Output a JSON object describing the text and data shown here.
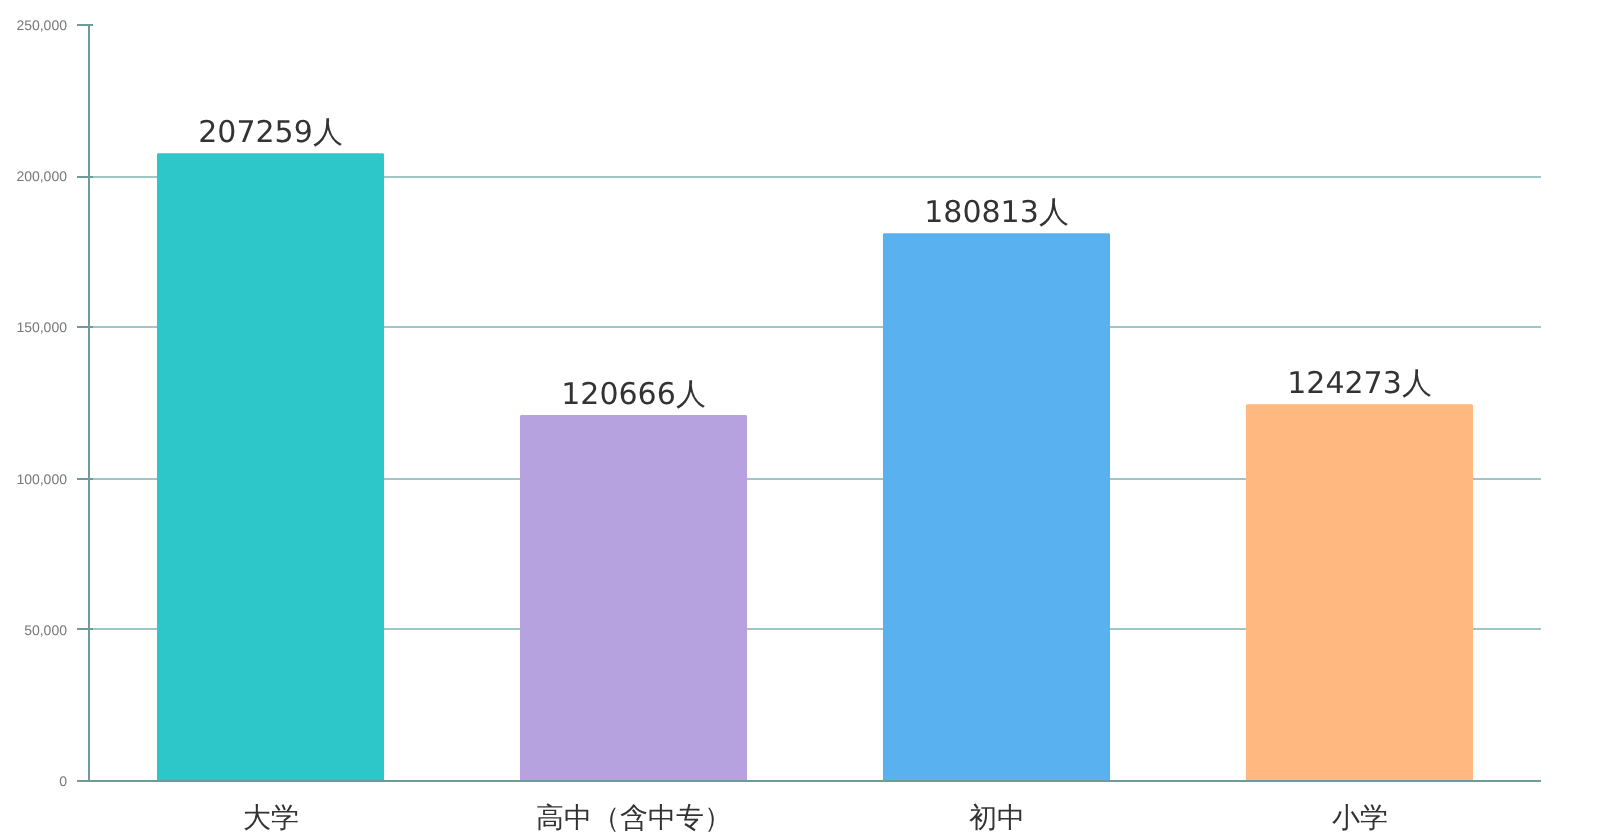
{
  "chart_data": {
    "type": "bar",
    "categories": [
      "大学",
      "高中（含中专）",
      "初中",
      "小学"
    ],
    "values": [
      207259,
      120666,
      180813,
      124273
    ],
    "colors": [
      "#2ec7c9",
      "#b6a2de",
      "#5ab1ef",
      "#ffb980"
    ],
    "value_labels": [
      "207259人",
      "120666人",
      "180813人",
      "124273人"
    ],
    "ylim": [
      0,
      250000
    ],
    "yticks": [
      {
        "value": 0,
        "label": "0"
      },
      {
        "value": 50000,
        "label": "50,000"
      },
      {
        "value": 100000,
        "label": "100,000"
      },
      {
        "value": 150000,
        "label": "150,000"
      },
      {
        "value": 200000,
        "label": "200,000"
      },
      {
        "value": 250000,
        "label": "250,000"
      }
    ],
    "grid": "y"
  }
}
